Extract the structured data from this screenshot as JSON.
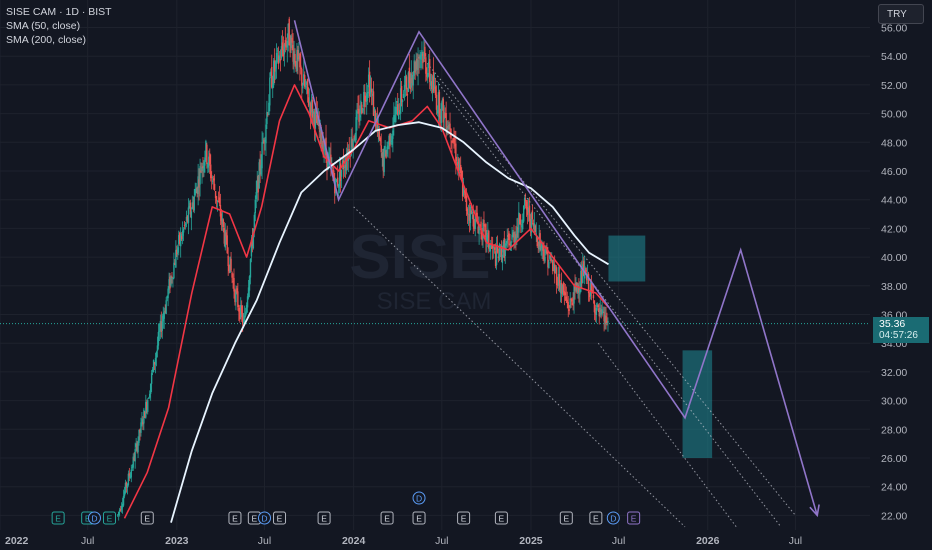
{
  "legend": {
    "title": "SISE CAM · 1D · BIST",
    "sma50": "SMA (50, close)",
    "sma200": "SMA (200, close)"
  },
  "currency": "TRY",
  "watermark": {
    "line1": "SISE",
    "line2": "SISE CAM"
  },
  "last_price": {
    "value": "35.36",
    "countdown": "04:57:26"
  },
  "colors": {
    "background": "#131722",
    "up": "#26a69a",
    "down": "#ef5350",
    "sma50": "#f23645",
    "sma200": "#e8f4ff",
    "pattern": "#9075c9",
    "zone": "#1f8a96",
    "grid": "#1e222d",
    "axis_text": "#b2b5be"
  },
  "chart_data": {
    "type": "candlestick",
    "x_axis": {
      "ticks": [
        "2022",
        "Jul",
        "2023",
        "Jul",
        "2024",
        "Jul",
        "2025",
        "Jul",
        "2026",
        "Jul"
      ]
    },
    "y_axis": {
      "range": [
        21.2,
        56.8
      ],
      "ticks": [
        "22.00",
        "24.00",
        "26.00",
        "28.00",
        "30.00",
        "32.00",
        "34.00",
        "36.00",
        "38.00",
        "40.00",
        "42.00",
        "44.00",
        "46.00",
        "48.00",
        "50.00",
        "52.00",
        "54.00",
        "56.00"
      ]
    },
    "price_path": [
      [
        "2022-09-01",
        22.0
      ],
      [
        "2022-10-01",
        25.5
      ],
      [
        "2022-11-01",
        30.0
      ],
      [
        "2022-12-01",
        35.5
      ],
      [
        "2023-01-01",
        40.5
      ],
      [
        "2023-02-01",
        43.5
      ],
      [
        "2023-03-01",
        47.5
      ],
      [
        "2023-04-01",
        43.0
      ],
      [
        "2023-05-01",
        37.5
      ],
      [
        "2023-05-20",
        35.2
      ],
      [
        "2023-06-15",
        44.5
      ],
      [
        "2023-07-15",
        52.5
      ],
      [
        "2023-08-20",
        55.5
      ],
      [
        "2023-09-20",
        52.0
      ],
      [
        "2023-10-20",
        49.0
      ],
      [
        "2023-11-25",
        45.0
      ],
      [
        "2024-01-01",
        48.5
      ],
      [
        "2024-02-01",
        52.5
      ],
      [
        "2024-03-01",
        46.5
      ],
      [
        "2024-04-01",
        50.5
      ],
      [
        "2024-05-20",
        54.5
      ],
      [
        "2024-06-20",
        51.0
      ],
      [
        "2024-07-20",
        49.0
      ],
      [
        "2024-08-20",
        43.5
      ],
      [
        "2024-09-20",
        42.0
      ],
      [
        "2024-10-20",
        40.0
      ],
      [
        "2024-11-20",
        41.0
      ],
      [
        "2024-12-20",
        43.5
      ],
      [
        "2025-01-20",
        41.0
      ],
      [
        "2025-02-20",
        39.0
      ],
      [
        "2025-03-20",
        36.5
      ],
      [
        "2025-04-20",
        39.0
      ],
      [
        "2025-05-20",
        36.0
      ],
      [
        "2025-06-10",
        35.4
      ]
    ],
    "series": [
      {
        "name": "SMA (50, close)",
        "color": "#f23645",
        "points": [
          [
            "2022-09-15",
            21.8
          ],
          [
            "2022-11-01",
            25.0
          ],
          [
            "2022-12-15",
            29.5
          ],
          [
            "2023-02-01",
            37.5
          ],
          [
            "2023-03-15",
            43.5
          ],
          [
            "2023-04-20",
            43.0
          ],
          [
            "2023-05-25",
            40.0
          ],
          [
            "2023-06-25",
            43.5
          ],
          [
            "2023-08-01",
            49.5
          ],
          [
            "2023-09-01",
            52.0
          ],
          [
            "2023-10-01",
            50.0
          ],
          [
            "2023-11-01",
            47.0
          ],
          [
            "2023-12-01",
            46.0
          ],
          [
            "2024-01-01",
            47.5
          ],
          [
            "2024-02-01",
            49.5
          ],
          [
            "2024-03-15",
            49.0
          ],
          [
            "2024-05-01",
            49.5
          ],
          [
            "2024-06-01",
            50.5
          ],
          [
            "2024-07-01",
            49.0
          ],
          [
            "2024-08-15",
            45.0
          ],
          [
            "2024-10-01",
            41.0
          ],
          [
            "2024-11-15",
            40.5
          ],
          [
            "2025-01-01",
            42.0
          ],
          [
            "2025-02-15",
            40.0
          ],
          [
            "2025-04-01",
            38.0
          ],
          [
            "2025-05-15",
            37.5
          ],
          [
            "2025-06-10",
            36.5
          ]
        ]
      },
      {
        "name": "SMA (200, close)",
        "color": "#e8f4ff",
        "points": [
          [
            "2022-12-20",
            21.5
          ],
          [
            "2023-02-01",
            26.5
          ],
          [
            "2023-03-15",
            30.5
          ],
          [
            "2023-05-01",
            34.0
          ],
          [
            "2023-06-15",
            37.0
          ],
          [
            "2023-08-01",
            41.0
          ],
          [
            "2023-09-15",
            44.5
          ],
          [
            "2023-11-01",
            46.0
          ],
          [
            "2024-01-01",
            47.5
          ],
          [
            "2024-02-15",
            48.8
          ],
          [
            "2024-04-01",
            49.2
          ],
          [
            "2024-05-15",
            49.4
          ],
          [
            "2024-07-01",
            49.0
          ],
          [
            "2024-08-15",
            48.0
          ],
          [
            "2024-10-01",
            46.6
          ],
          [
            "2024-11-15",
            45.5
          ],
          [
            "2025-01-01",
            44.8
          ],
          [
            "2025-02-15",
            43.5
          ],
          [
            "2025-04-01",
            41.5
          ],
          [
            "2025-05-01",
            40.3
          ],
          [
            "2025-06-10",
            39.5
          ]
        ]
      }
    ],
    "pattern_path": [
      [
        "2023-09-01",
        56.5
      ],
      [
        "2023-12-01",
        44.0
      ],
      [
        "2024-05-15",
        55.7
      ],
      [
        "2025-11-15",
        28.8
      ],
      [
        "2026-03-10",
        40.5
      ],
      [
        "2026-08-15",
        22.0
      ]
    ],
    "trend_channels": [
      {
        "from": [
          "2024-06-01",
          53.5
        ],
        "to": [
          "2026-07-01",
          22.0
        ]
      },
      {
        "from": [
          "2024-06-15",
          52.5
        ],
        "to": [
          "2026-06-01",
          21.2
        ]
      },
      {
        "from": [
          "2024-01-01",
          43.5
        ],
        "to": [
          "2025-11-15",
          21.2
        ]
      },
      {
        "from": [
          "2025-05-20",
          34.0
        ],
        "to": [
          "2026-03-01",
          21.2
        ]
      }
    ],
    "zones": [
      {
        "x0": "2025-06-10",
        "x1": "2025-08-25",
        "y0": 41.5,
        "y1": 38.3
      },
      {
        "x0": "2025-11-10",
        "x1": "2026-01-10",
        "y0": 33.5,
        "y1": 26.0
      }
    ],
    "event_markers": [
      {
        "label": "E",
        "date": "2022-05-01",
        "color": "#26a69a"
      },
      {
        "label": "E",
        "date": "2022-07-01",
        "color": "#26a69a"
      },
      {
        "label": "D",
        "date": "2022-07-15",
        "color": "#5b9cf6"
      },
      {
        "label": "E",
        "date": "2022-08-15",
        "color": "#26a69a"
      },
      {
        "label": "E",
        "date": "2022-11-01",
        "color": "#b2b5be"
      },
      {
        "label": "E",
        "date": "2023-05-01",
        "color": "#b2b5be"
      },
      {
        "label": "E",
        "date": "2023-06-10",
        "color": "#b2b5be"
      },
      {
        "label": "D",
        "date": "2023-07-01",
        "color": "#5b9cf6"
      },
      {
        "label": "E",
        "date": "2023-08-01",
        "color": "#b2b5be"
      },
      {
        "label": "E",
        "date": "2023-11-01",
        "color": "#b2b5be"
      },
      {
        "label": "E",
        "date": "2024-03-10",
        "color": "#b2b5be"
      },
      {
        "label": "E",
        "date": "2024-05-15",
        "color": "#b2b5be"
      },
      {
        "label": "E",
        "date": "2024-08-15",
        "color": "#b2b5be"
      },
      {
        "label": "E",
        "date": "2024-11-01",
        "color": "#b2b5be"
      },
      {
        "label": "E",
        "date": "2025-03-15",
        "color": "#b2b5be"
      },
      {
        "label": "E",
        "date": "2025-05-15",
        "color": "#b2b5be"
      },
      {
        "label": "D",
        "date": "2025-06-20",
        "color": "#5b9cf6"
      },
      {
        "label": "E",
        "date": "2025-08-01",
        "color": "#9075c9"
      },
      {
        "label": "D",
        "date": "2024-05-15",
        "color": "#5b9cf6",
        "raised": true
      }
    ]
  }
}
